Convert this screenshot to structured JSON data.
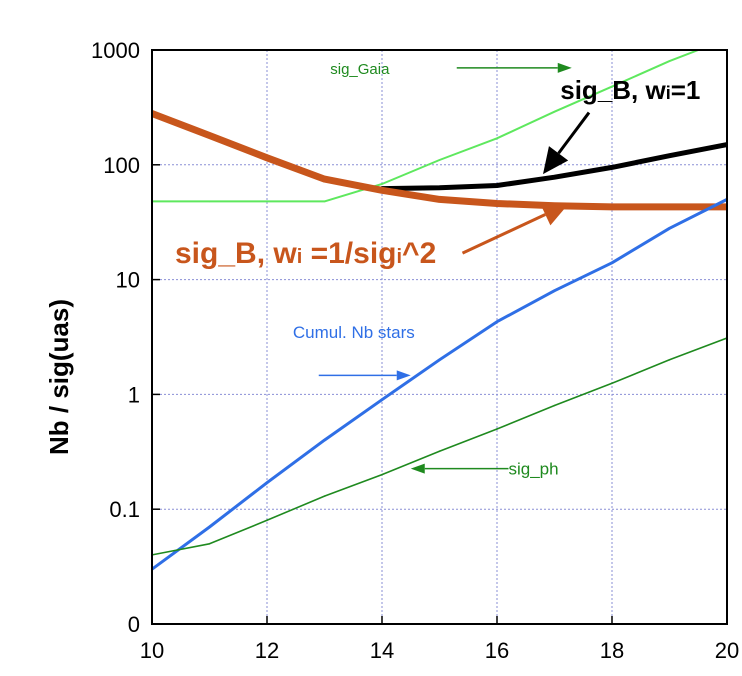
{
  "chart_data": {
    "type": "line",
    "title": "",
    "xlabel": "",
    "ylabel": "Nb  / sig(uas)",
    "xlim": [
      10,
      20
    ],
    "ylim": [
      0.01,
      1000
    ],
    "yscale": "log",
    "grid": true,
    "x_ticks": [
      10,
      12,
      14,
      16,
      18,
      20
    ],
    "x_tick_labels": [
      "10",
      "12",
      "14",
      "16",
      "18",
      "20"
    ],
    "y_ticks": [
      0.01,
      0.1,
      1,
      10,
      100,
      1000
    ],
    "y_tick_labels": [
      "0",
      "0.1",
      "1",
      "10",
      "100",
      "1000"
    ],
    "colors": {
      "sig_gaia": "#5ee85e",
      "sig_b_w1": "#000000",
      "sig_b_wsig": "#c8561c",
      "cumul": "#2f6fe6",
      "sig_ph": "#1f8a1f",
      "grid": "#8a8fd6",
      "frame": "#000000"
    },
    "series": [
      {
        "key": "sig_gaia",
        "x": [
          10,
          11,
          12,
          13,
          14,
          15,
          16,
          17,
          18,
          19,
          19.5
        ],
        "y": [
          48,
          48,
          48,
          48,
          68,
          110,
          170,
          290,
          480,
          800,
          1000
        ]
      },
      {
        "key": "sig_b_w1",
        "x": [
          14,
          15,
          16,
          17,
          18,
          19,
          20
        ],
        "y": [
          62,
          63,
          66,
          78,
          95,
          120,
          150
        ]
      },
      {
        "key": "sig_b_wsig",
        "x": [
          10,
          11,
          12,
          13,
          14,
          15,
          16,
          17,
          18,
          19,
          20
        ],
        "y": [
          280,
          180,
          115,
          75,
          60,
          50,
          46,
          44,
          43,
          43,
          43
        ]
      },
      {
        "key": "cumul",
        "x": [
          10,
          11,
          12,
          13,
          14,
          15,
          16,
          17,
          18,
          19,
          20
        ],
        "y": [
          0.03,
          0.07,
          0.17,
          0.4,
          0.9,
          2,
          4.3,
          8,
          14,
          28,
          50
        ]
      },
      {
        "key": "sig_ph",
        "x": [
          10,
          11,
          12,
          13,
          14,
          15,
          16,
          17,
          18,
          19,
          20
        ],
        "y": [
          0.04,
          0.05,
          0.08,
          0.13,
          0.2,
          0.32,
          0.5,
          0.8,
          1.25,
          2,
          3.1
        ]
      }
    ],
    "annotations": [
      {
        "key": "sig_gaia",
        "text": "sig_Gaia",
        "text_x": 13.1,
        "text_y": 620,
        "arrow_from": [
          15.3,
          620
        ],
        "arrow_to": [
          17.3,
          620
        ]
      },
      {
        "key": "sig_b_w1",
        "main": "sig_B, w",
        "sub": "i",
        "tail": "=1",
        "text_x": 17.1,
        "text_y": 375,
        "arrow_from": [
          17.6,
          285
        ],
        "arrow_to": [
          16.8,
          83
        ]
      },
      {
        "key": "sig_b_wsig",
        "main": "sig_B, w",
        "sub": "i",
        "mid": " =1/sig",
        "sub2": "i",
        "tail": "^2",
        "text_x": 10.4,
        "text_y": 14,
        "arrow_from": [
          15.4,
          17
        ],
        "arrow_to": [
          17.25,
          46
        ]
      },
      {
        "key": "cumul",
        "text": "Cumul. Nb stars",
        "text_x": 12.45,
        "text_y": 3.1,
        "arrow_from": [
          12.9,
          1.3
        ],
        "arrow_to": [
          14.5,
          1.3
        ]
      },
      {
        "key": "sig_ph",
        "text": "sig_ph",
        "text_x": 16.2,
        "text_y": 0.2,
        "arrow_from": [
          16.2,
          0.2
        ],
        "arrow_to": [
          14.5,
          0.2
        ]
      }
    ]
  }
}
